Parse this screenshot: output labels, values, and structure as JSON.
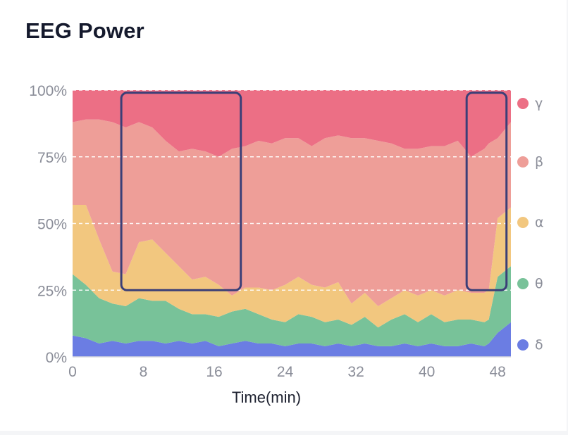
{
  "title": "EEG Power",
  "chart_data": {
    "type": "area",
    "stacked": true,
    "normalized": true,
    "title": "EEG Power",
    "xlabel": "Time(min)",
    "ylabel": "",
    "xlim": [
      0,
      49.5
    ],
    "ylim": [
      0,
      100
    ],
    "x_ticks": [
      "0",
      "8",
      "16",
      "24",
      "32",
      "40",
      "48"
    ],
    "y_ticks": [
      "0%",
      "25%",
      "50%",
      "75%",
      "100%"
    ],
    "grid": "horizontal-dashed",
    "legend_position": "right",
    "x": [
      0,
      1.5,
      3,
      4.5,
      6,
      7.5,
      9,
      10.5,
      12,
      13.5,
      15,
      16.5,
      18,
      19.5,
      21,
      22.5,
      24,
      25.5,
      27,
      28.5,
      30,
      31.5,
      33,
      34.5,
      36,
      37.5,
      39,
      40.5,
      42,
      43.5,
      45,
      46.5,
      47,
      48,
      49.5
    ],
    "series": [
      {
        "name": "δ",
        "color": "#6b7de3",
        "values": [
          8,
          7,
          5,
          6,
          5,
          6,
          6,
          5,
          6,
          5,
          6,
          4,
          5,
          6,
          5,
          5,
          4,
          5,
          5,
          4,
          5,
          4,
          5,
          4,
          4,
          5,
          4,
          5,
          4,
          4,
          5,
          4,
          5,
          9,
          13
        ]
      },
      {
        "name": "θ",
        "color": "#78c299",
        "values": [
          23,
          20,
          17,
          14,
          14,
          16,
          15,
          16,
          12,
          11,
          10,
          11,
          12,
          12,
          11,
          9,
          9,
          11,
          10,
          9,
          9,
          8,
          10,
          7,
          10,
          11,
          9,
          11,
          9,
          10,
          9,
          9,
          9,
          21,
          21
        ]
      },
      {
        "name": "α",
        "color": "#f2c77f",
        "values": [
          26,
          30,
          22,
          12,
          12,
          21,
          23,
          18,
          16,
          13,
          14,
          12,
          6,
          8,
          10,
          11,
          14,
          14,
          12,
          13,
          14,
          8,
          9,
          8,
          8,
          9,
          10,
          9,
          10,
          11,
          10,
          11,
          11,
          22,
          22
        ]
      },
      {
        "name": "β",
        "color": "#ee9e98",
        "values": [
          31,
          32,
          45,
          56,
          55,
          45,
          42,
          42,
          43,
          49,
          47,
          48,
          55,
          53,
          55,
          55,
          55,
          52,
          52,
          56,
          55,
          62,
          58,
          62,
          58,
          53,
          55,
          54,
          56,
          56,
          51,
          54,
          55,
          30,
          32
        ]
      },
      {
        "name": "γ",
        "color": "#ec6f85",
        "values": [
          12,
          11,
          11,
          12,
          14,
          12,
          14,
          19,
          23,
          22,
          23,
          25,
          22,
          21,
          19,
          20,
          18,
          18,
          21,
          18,
          17,
          18,
          18,
          19,
          20,
          22,
          22,
          21,
          21,
          19,
          25,
          22,
          20,
          18,
          12
        ]
      }
    ],
    "highlight_ranges": [
      {
        "x": [
          5.5,
          19
        ],
        "y": [
          25,
          99
        ]
      },
      {
        "x": [
          44.5,
          49
        ],
        "y": [
          25,
          99
        ]
      }
    ]
  }
}
